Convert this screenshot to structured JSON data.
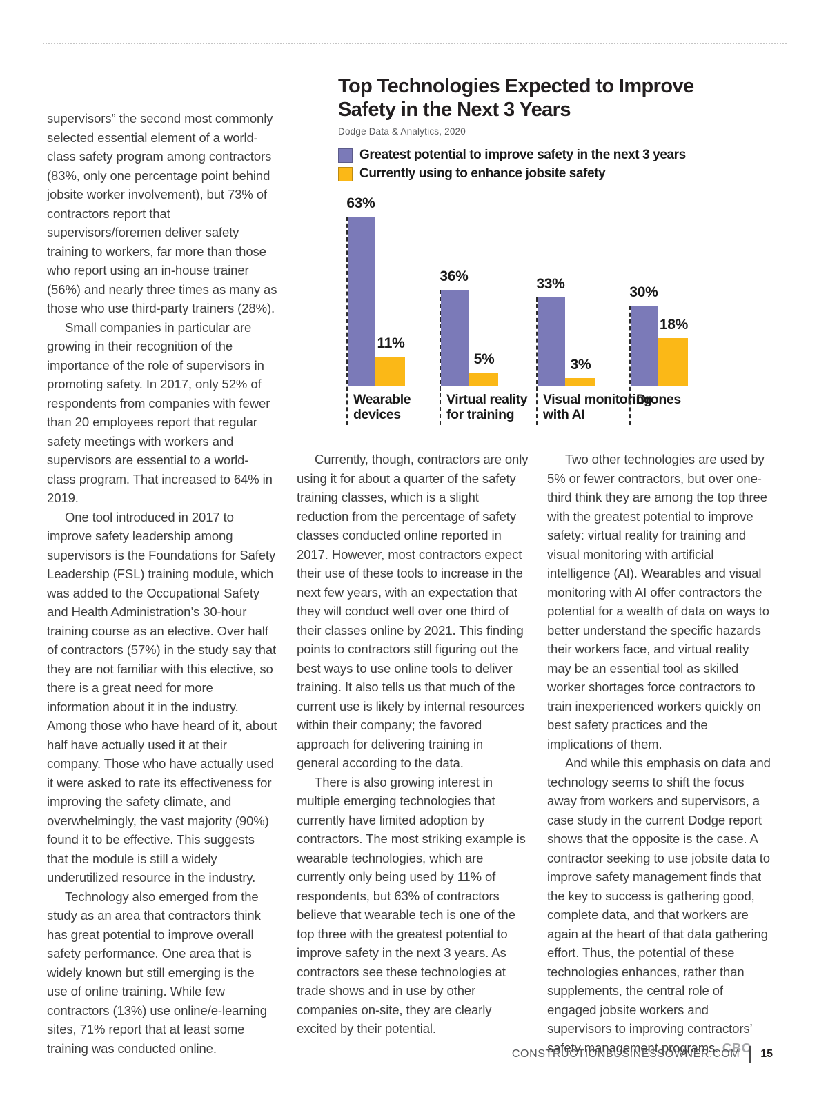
{
  "article": {
    "left_column": [
      "supervisors” the second most commonly selected essential element of a world-class safety program among contractors (83%, only one percentage point behind jobsite worker involvement), but 73% of contractors report that supervisors/foremen deliver safety training to workers, far more than those who report using an in-house trainer (56%) and nearly three times as many as those who use third-party trainers (28%).",
      "Small companies in particular are growing in their recognition of the importance of the role of supervisors in promoting safety. In 2017, only 52% of respondents from companies with fewer than 20 employees report that regular safety meetings with workers and supervisors are essential to a world-class program. That increased to 64% in 2019.",
      "One tool introduced in 2017 to improve safety leadership among supervisors is the Foundations for Safety Leadership (FSL) training module, which was added to the Occupational Safety and Health Administration’s 30-hour training course as an elective. Over half of contractors (57%) in the study say that they are not familiar with this elective, so there is a great need for more information about it in the industry. Among those who have heard of it, about half have actually used it at their company. Those who have actually used it were asked to rate its effectiveness for improving the safety climate, and overwhelmingly, the vast majority (90%) found it to be effective. This suggests that the module is still a widely underutilized resource in the industry.",
      "Technology also emerged from the study as an area that contractors think has great potential to improve overall safety performance. One area that is widely known but still emerging is the use of online training. While few contractors (13%) use online/e-learning sites, 71% report that at least some training was conducted online."
    ],
    "middle_column": [
      "Currently, though, contractors are only using it for about a quarter of the safety training classes, which is a slight reduction from the percentage of safety classes conducted online reported in 2017. However, most contractors expect their use of these tools to increase in the next few years, with an expectation that they will conduct well over one third of their classes online by 2021. This finding points to contractors still figuring out the best ways to use online tools to deliver training. It also tells us that much of the current use is likely by internal resources within their company; the favored approach for delivering training in general according to the data.",
      "There is also growing interest in multiple emerging technologies that currently have limited adoption by contractors. The most striking example is wearable technologies, which are currently only being used by 11% of respondents, but 63% of contractors believe that wearable tech is one of the top three with the greatest potential to improve safety in the next 3 years. As contractors see these technologies at trade shows and in use by other companies on-site, they are clearly excited by their potential."
    ],
    "right_column": [
      "Two other technologies are used by 5% or fewer contractors, but over one-third think they are among the top three with the greatest potential to improve safety: virtual reality for training and visual monitoring with artificial intelligence (AI). Wearables and visual monitoring with AI offer contractors the potential for a wealth of data on ways to better understand the specific hazards their workers face, and virtual reality may be an essential tool as skilled worker shortages force contractors to train inexperienced workers quickly on best safety practices and the implications of them.",
      "And while this emphasis on data and technology seems to shift the focus away from workers and supervisors, a case study in the current Dodge report shows that the opposite is the case. A contractor seeking to use jobsite data to improve safety management finds that the key to success is gathering good, complete data, and that workers are again at the heart of that data gathering effort. Thus, the potential of these technologies enhances, rather than supplements, the central role of engaged jobsite workers and supervisors to improving contractors’ safety management programs."
    ],
    "cbo_tag": "CBO"
  },
  "chart_data": {
    "type": "bar",
    "title": "Top Technologies Expected to Improve Safety in the Next 3 Years",
    "title_lines": [
      "Top Technologies Expected to Improve",
      "Safety in the Next 3 Years"
    ],
    "source": "Dodge Data & Analytics, 2020",
    "legend": [
      {
        "label": "Greatest potential to improve safety in the next 3 years",
        "color": "#7b7ab8"
      },
      {
        "label": "Currently using to enhance jobsite safety",
        "color": "#fbb817"
      }
    ],
    "legend_position": "top-left",
    "grid": false,
    "ylim": [
      0,
      70
    ],
    "categories": [
      "Wearable devices",
      "Virtual reality for training",
      "Visual monitoring with AI",
      "Drones"
    ],
    "category_lines": [
      [
        "Wearable",
        "devices"
      ],
      [
        "Virtual reality",
        "for training"
      ],
      [
        "Visual monitoring",
        "with AI"
      ],
      [
        "Drones"
      ]
    ],
    "series": [
      {
        "name": "Greatest potential to improve safety in the next 3 years",
        "color": "#7b7ab8",
        "values": [
          63,
          36,
          33,
          30
        ]
      },
      {
        "name": "Currently using to enhance jobsite safety",
        "color": "#fbb817",
        "values": [
          11,
          5,
          3,
          18
        ]
      }
    ],
    "value_labels": [
      [
        "63%",
        "11%"
      ],
      [
        "36%",
        "5%"
      ],
      [
        "33%",
        "3%"
      ],
      [
        "30%",
        "18%"
      ]
    ]
  },
  "footer": {
    "site": "CONSTRUCTIONBUSINESSOWNER.COM",
    "page_number": "15"
  }
}
